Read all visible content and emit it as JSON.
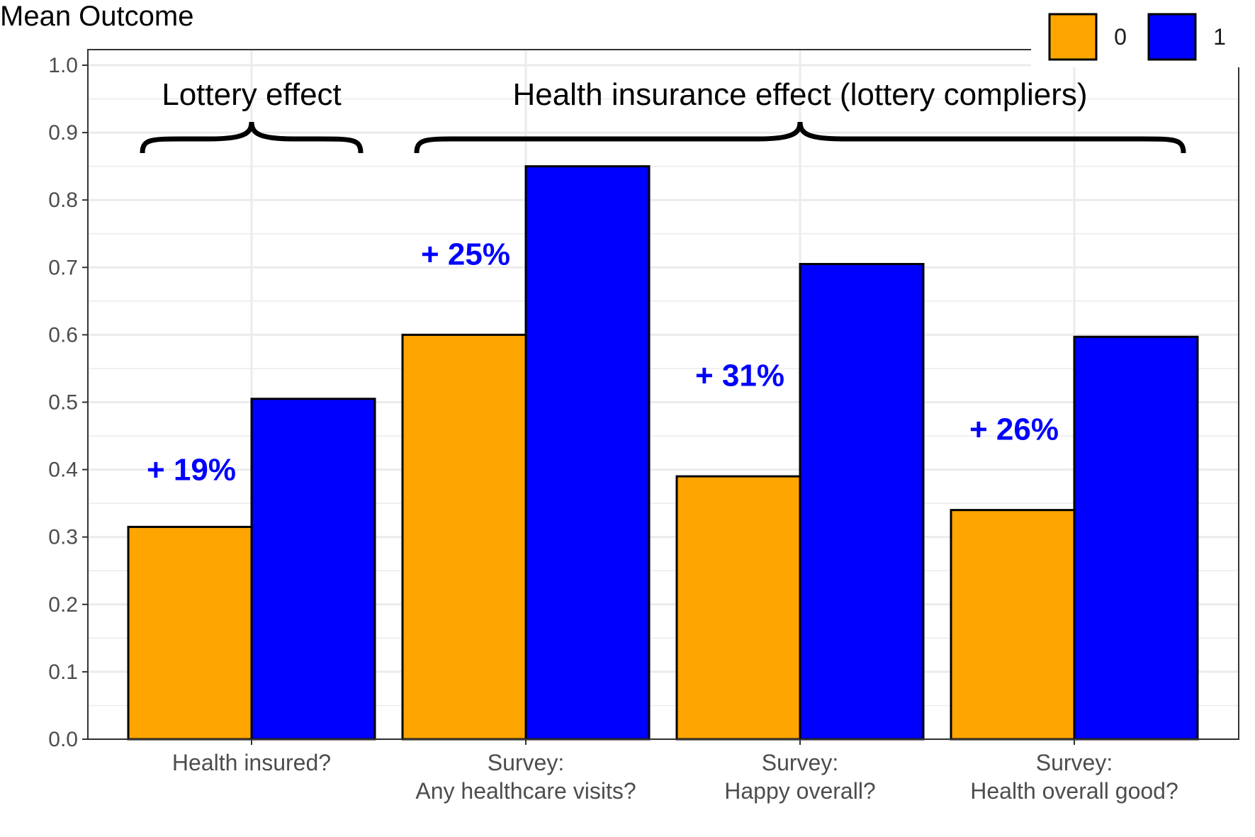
{
  "chart_data": {
    "type": "bar",
    "ylabel": "Mean Outcome",
    "xlabel": "",
    "ylim": [
      0,
      1
    ],
    "yticks": [
      "0.0",
      "0.1",
      "0.2",
      "0.3",
      "0.4",
      "0.5",
      "0.6",
      "0.7",
      "0.8",
      "0.9",
      "1.0"
    ],
    "grid": true,
    "legend_position": "top-right",
    "categories": [
      [
        "Health insured?"
      ],
      [
        "Survey:",
        "Any healthcare visits?"
      ],
      [
        "Survey:",
        "Happy overall?"
      ],
      [
        "Survey:",
        "Health overall good?"
      ]
    ],
    "series": [
      {
        "name": "0",
        "color": "#FFA500",
        "values": [
          0.315,
          0.6,
          0.39,
          0.34
        ]
      },
      {
        "name": "1",
        "color": "#0000FF",
        "values": [
          0.505,
          0.85,
          0.705,
          0.597
        ]
      }
    ],
    "annotations": {
      "effects": [
        {
          "category_index": 0,
          "text": "+ 19%",
          "y": 0.4,
          "color": "#0000FF"
        },
        {
          "category_index": 1,
          "text": "+ 25%",
          "y": 0.72,
          "color": "#0000FF"
        },
        {
          "category_index": 2,
          "text": "+ 31%",
          "y": 0.54,
          "color": "#0000FF"
        },
        {
          "category_index": 3,
          "text": "+ 26%",
          "y": 0.46,
          "color": "#0000FF"
        }
      ],
      "braces": [
        {
          "label": "Lottery effect",
          "from_category": 0,
          "to_category": 0
        },
        {
          "label": "Health insurance effect (lottery compliers)",
          "from_category": 1,
          "to_category": 3
        }
      ]
    }
  }
}
